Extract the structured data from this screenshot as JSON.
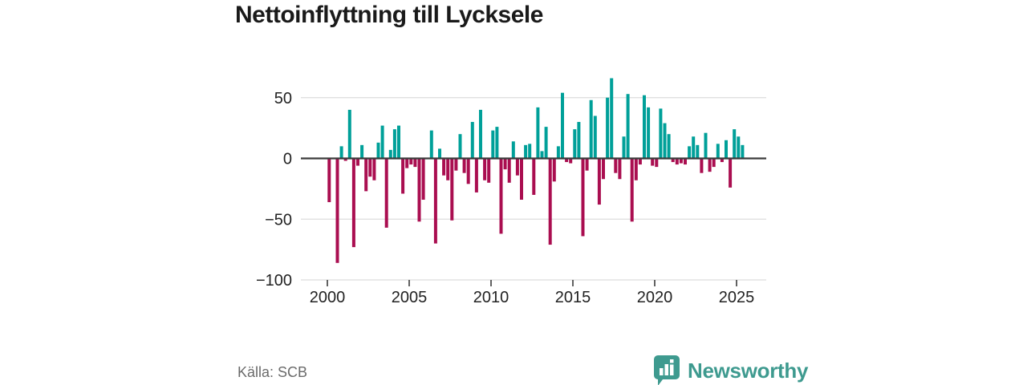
{
  "title": "Nettoinflyttning till Lycksele",
  "footer": {
    "source": "Källa: SCB",
    "brand": "Newsworthy"
  },
  "colors": {
    "positive": "#00a099",
    "negative": "#aa0e50",
    "axis": "#3b3b3b",
    "grid": "#dddddd",
    "tick_label": "#222222",
    "brand_teal": "#3e9a8f"
  },
  "chart_data": {
    "type": "bar",
    "title": "Nettoinflyttning till Lycksele",
    "xlabel": "",
    "ylabel": "",
    "x_unit": "quarter",
    "start": "2000Q1",
    "frequency": "quarterly",
    "values": [
      -36,
      0,
      -86,
      10,
      -2,
      40,
      -73,
      -6,
      11,
      -27,
      -15,
      -18,
      13,
      27,
      -57,
      7,
      24,
      27,
      -29,
      -8,
      -5,
      -7,
      -52,
      -34,
      0,
      23,
      -70,
      8,
      -14,
      -18,
      -51,
      -10,
      20,
      -12,
      -21,
      30,
      -28,
      40,
      -18,
      -20,
      23,
      26,
      -62,
      -9,
      -20,
      14,
      -14,
      -34,
      11,
      12,
      -30,
      42,
      6,
      26,
      -71,
      -19,
      10,
      54,
      -3,
      -4,
      24,
      30,
      -64,
      -10,
      48,
      35,
      -38,
      -17,
      50,
      66,
      -12,
      -17,
      18,
      53,
      -52,
      -18,
      -5,
      52,
      42,
      -6,
      -7,
      41,
      29,
      20,
      -3,
      -5,
      -4,
      -5,
      10,
      18,
      11,
      -12,
      21,
      -11,
      -7,
      12,
      -3,
      15,
      -24,
      24,
      18,
      11
    ],
    "yticks": [
      50,
      0,
      -50,
      -100
    ],
    "ytick_labels": [
      "50",
      "0",
      "−50",
      "−100"
    ],
    "xticks": [
      2000,
      2005,
      2010,
      2015,
      2020,
      2025
    ],
    "xtick_labels": [
      "2000",
      "2005",
      "2010",
      "2015",
      "2020",
      "2025"
    ],
    "ylim": [
      -100,
      67
    ],
    "xlim_years": [
      1998.4,
      2026.8
    ],
    "grid": true,
    "legend": "none",
    "positive_color": "#00a099",
    "negative_color": "#aa0e50"
  },
  "logo_icon": "speech-bubble-bar-chart"
}
